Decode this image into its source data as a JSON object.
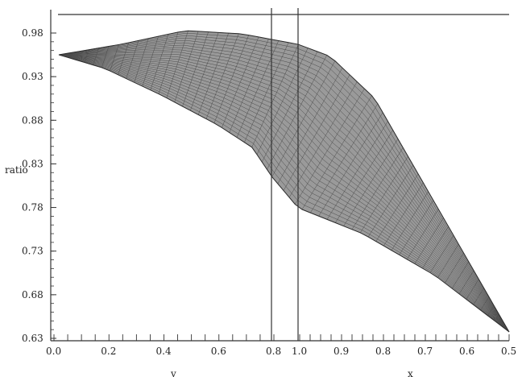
{
  "chart_data": {
    "type": "surface",
    "ylabel": "ratio",
    "x_axis_left_label": "y",
    "x_axis_right_label": "x",
    "z_ticks": [
      "0.98",
      "0.93",
      "0.88",
      "0.83",
      "0.78",
      "0.73",
      "0.68",
      "0.63"
    ],
    "z_range": [
      0.63,
      0.98
    ],
    "y_axis_ticks": [
      "0.0",
      "0.2",
      "0.4",
      "0.6",
      "0.8"
    ],
    "x_axis_ticks": [
      "1.0",
      "0.9",
      "0.8",
      "0.7",
      "0.6",
      "0.5"
    ],
    "grid": false,
    "colors": {
      "surface_fill": "#9a9a9a",
      "mesh_line": "#4a4a4a",
      "frame": "#333333"
    }
  }
}
